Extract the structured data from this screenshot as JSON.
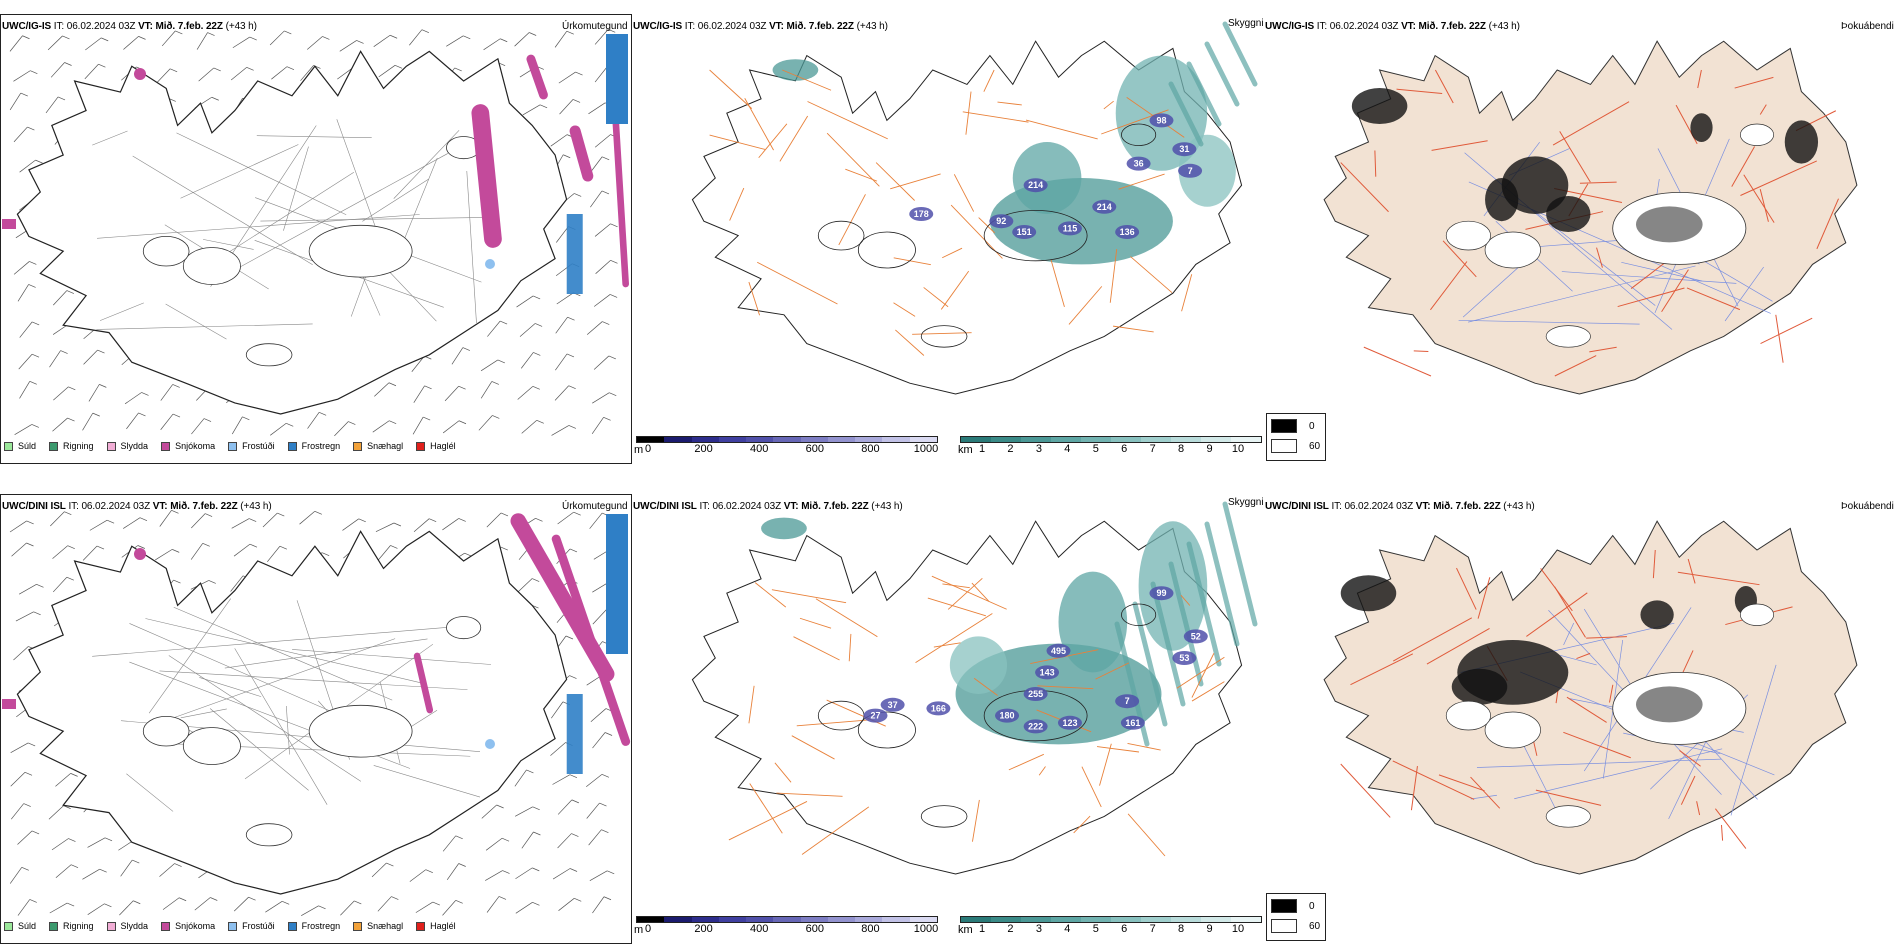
{
  "rows": [
    {
      "model": "UWC/IG-IS",
      "it_label": "IT:",
      "it_value": "06.02.2024 03Z",
      "vt_label": "VT:",
      "vt_value": "Mið. 7.feb. 22Z",
      "lead": "(+43 h)",
      "titles": {
        "precip": "Úrkomutegund",
        "cloud": "Skyggni",
        "fog": "Þokuábendi"
      },
      "visibility_labels": [
        "98",
        "31",
        "36",
        "214",
        "178",
        "92",
        "151",
        "115",
        "214",
        "136",
        "7"
      ]
    },
    {
      "model": "UWC/DINI ISL",
      "it_label": "IT:",
      "it_value": "06.02.2024 03Z",
      "vt_label": "VT:",
      "vt_value": "Mið. 7.feb. 22Z",
      "lead": "(+43 h)",
      "titles": {
        "precip": "Úrkomutegund",
        "cloud": "Skyggni",
        "fog": "Þokuábendi"
      },
      "visibility_labels": [
        "99",
        "52",
        "53",
        "495",
        "143",
        "255",
        "37",
        "166",
        "180",
        "222",
        "123",
        "161",
        "7",
        "27"
      ]
    }
  ],
  "precip_legend": [
    {
      "label": "Súld",
      "color": "#9be89b"
    },
    {
      "label": "Rigning",
      "color": "#3c9a6e"
    },
    {
      "label": "Slydda",
      "color": "#f2aed6"
    },
    {
      "label": "Snjókoma",
      "color": "#c34a9b"
    },
    {
      "label": "Frostúði",
      "color": "#8ec0ef"
    },
    {
      "label": "Frostregn",
      "color": "#2f7fc6"
    },
    {
      "label": "Snæhagl",
      "color": "#f2a23a"
    },
    {
      "label": "Haglél",
      "color": "#e0201c"
    }
  ],
  "cloud_base_scale": {
    "unit": "m",
    "ticks": [
      "0",
      "200",
      "400",
      "600",
      "800",
      "1000"
    ],
    "colors": [
      "#000000",
      "#1b1b6e",
      "#2d2d8c",
      "#3f3fa0",
      "#5050aa",
      "#6767b6",
      "#7d7dc3",
      "#9393cf",
      "#a9a9db",
      "#c2c2e7",
      "#dadaf2"
    ]
  },
  "visibility_scale": {
    "unit": "km",
    "ticks": [
      "1",
      "2",
      "3",
      "4",
      "5",
      "6",
      "7",
      "8",
      "9",
      "10"
    ],
    "colors": [
      "#2a7a78",
      "#3a8a87",
      "#4b9896",
      "#5ea6a4",
      "#72b3b1",
      "#88c1bf",
      "#a0cfcd",
      "#b9dcdb",
      "#d2e9e8",
      "#e8f4f4"
    ]
  },
  "fog_scale": {
    "values": [
      "0",
      "60"
    ],
    "colors": [
      "#000000",
      "#ffffff"
    ]
  },
  "colors": {
    "land": "#f2e2d3",
    "roads": "#e8813a",
    "roads_fog": "#e05a3a",
    "rivers": "#7a8fe0",
    "outline": "#222222"
  }
}
